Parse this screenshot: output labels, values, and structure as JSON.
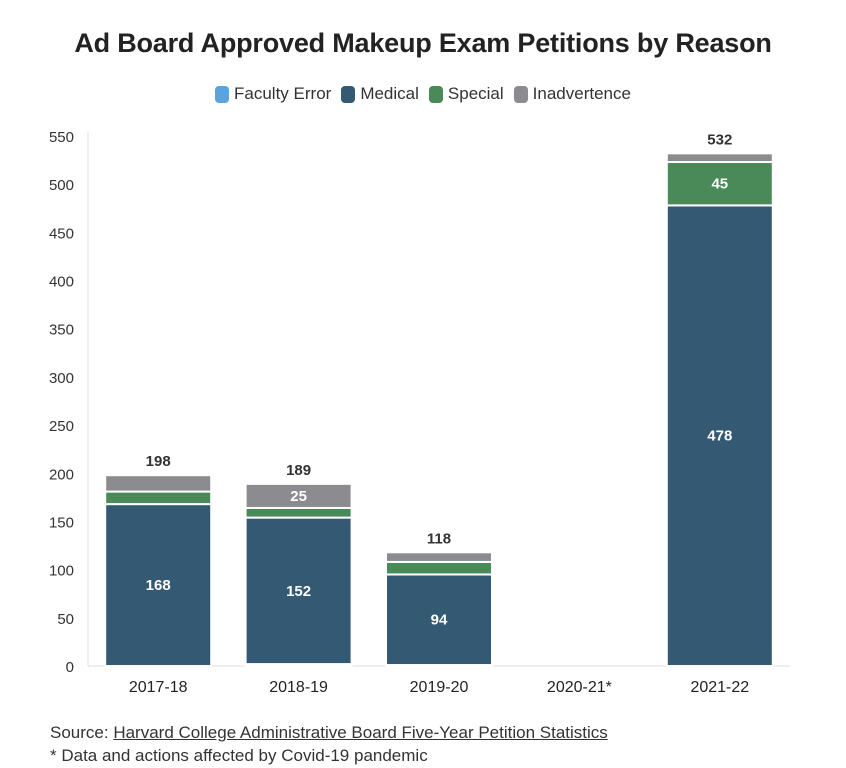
{
  "header": {
    "title": "Ad Board Approved Makeup Exam Petitions by Reason"
  },
  "chart_data": {
    "type": "bar",
    "stacked": true,
    "title": "Ad Board Approved Makeup Exam Petitions by Reason",
    "xlabel": "",
    "ylabel": "",
    "ylim": [
      0,
      550
    ],
    "yticks": [
      0,
      50,
      100,
      150,
      200,
      250,
      300,
      350,
      400,
      450,
      500,
      550
    ],
    "categories": [
      "2017-18",
      "2018-19",
      "2019-20",
      "2020-21*",
      "2021-22"
    ],
    "series": [
      {
        "name": "Faculty Error",
        "color": "#5ba3dc",
        "values": [
          0,
          2,
          1,
          0,
          0
        ]
      },
      {
        "name": "Medical",
        "color": "#345a73",
        "values": [
          168,
          152,
          94,
          0,
          478
        ]
      },
      {
        "name": "Special",
        "color": "#4a8a58",
        "values": [
          13,
          10,
          13,
          0,
          45
        ]
      },
      {
        "name": "Inadvertence",
        "color": "#8c8c90",
        "values": [
          17,
          25,
          10,
          0,
          9
        ]
      }
    ],
    "totals": [
      198,
      189,
      118,
      null,
      532
    ],
    "legend_position": "top-center",
    "segment_labels": [
      {
        "category": "2017-18",
        "series": "Medical",
        "label": "168"
      },
      {
        "category": "2018-19",
        "series": "Medical",
        "label": "152"
      },
      {
        "category": "2018-19",
        "series": "Inadvertence",
        "label": "25"
      },
      {
        "category": "2019-20",
        "series": "Medical",
        "label": "94"
      },
      {
        "category": "2021-22",
        "series": "Medical",
        "label": "478"
      },
      {
        "category": "2021-22",
        "series": "Special",
        "label": "45"
      }
    ]
  },
  "footer": {
    "source_prefix": "Source: ",
    "source_link": "Harvard College Administrative Board Five-Year Petition Statistics",
    "note": "* Data and actions affected by Covid-19 pandemic"
  }
}
